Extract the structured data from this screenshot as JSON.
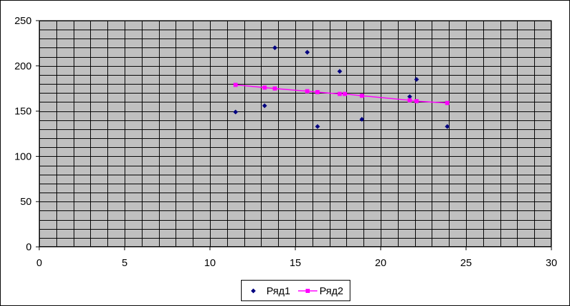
{
  "chart_data": {
    "type": "scatter",
    "xlim": [
      0,
      30
    ],
    "ylim": [
      0,
      250
    ],
    "x_ticks": [
      0,
      5,
      10,
      15,
      20,
      25,
      30
    ],
    "y_ticks": [
      0,
      50,
      100,
      150,
      200,
      250
    ],
    "grid": true,
    "legend_position": "bottom-center",
    "plot_background": "#c0c0c0",
    "series": [
      {
        "name": "Ряд1",
        "kind": "scatter",
        "marker": "diamond",
        "color": "#000080",
        "points": [
          {
            "x": 11.5,
            "y": 149
          },
          {
            "x": 13.2,
            "y": 156
          },
          {
            "x": 13.8,
            "y": 220
          },
          {
            "x": 15.7,
            "y": 215
          },
          {
            "x": 16.3,
            "y": 133
          },
          {
            "x": 17.6,
            "y": 194
          },
          {
            "x": 18.9,
            "y": 141
          },
          {
            "x": 21.7,
            "y": 166
          },
          {
            "x": 22.1,
            "y": 185
          },
          {
            "x": 23.9,
            "y": 133
          }
        ]
      },
      {
        "name": "Ряд2",
        "kind": "line",
        "marker": "square",
        "color": "#ff00ff",
        "points": [
          {
            "x": 11.5,
            "y": 179
          },
          {
            "x": 13.2,
            "y": 176
          },
          {
            "x": 13.8,
            "y": 175
          },
          {
            "x": 15.7,
            "y": 172
          },
          {
            "x": 16.3,
            "y": 171
          },
          {
            "x": 17.6,
            "y": 169
          },
          {
            "x": 17.9,
            "y": 169
          },
          {
            "x": 18.9,
            "y": 167
          },
          {
            "x": 21.7,
            "y": 162
          },
          {
            "x": 22.1,
            "y": 161
          },
          {
            "x": 23.9,
            "y": 159
          }
        ]
      }
    ]
  }
}
